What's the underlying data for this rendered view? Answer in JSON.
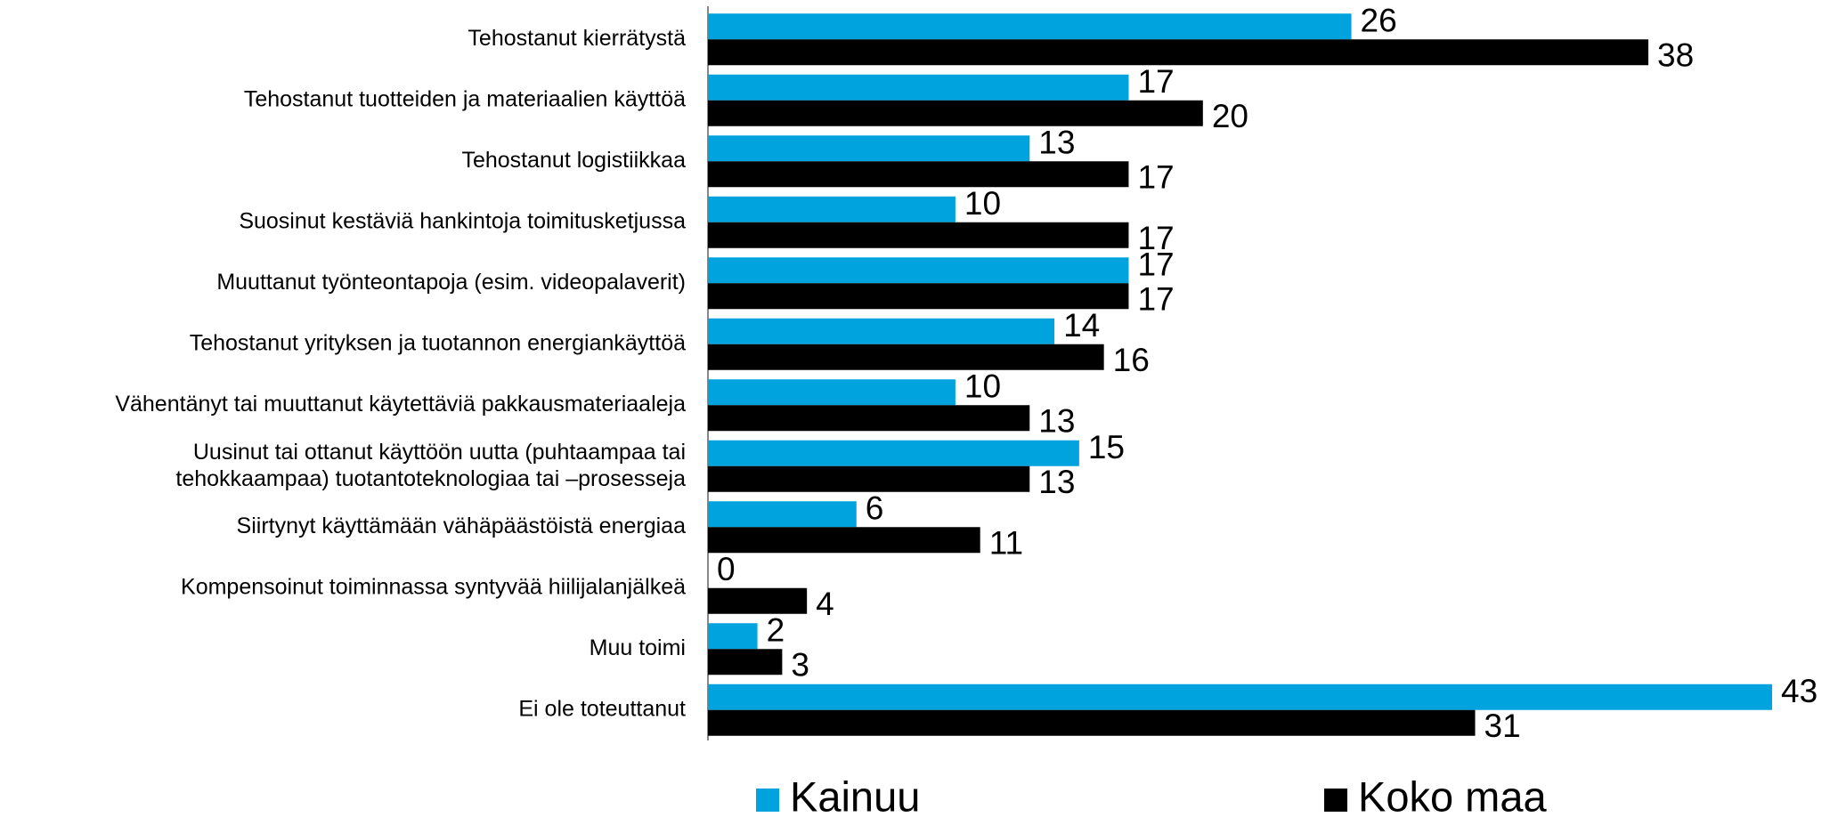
{
  "chart_data": {
    "type": "bar",
    "orientation": "horizontal",
    "categories": [
      "Tehostanut kierrätystä",
      "Tehostanut tuotteiden ja materiaalien käyttöä",
      "Tehostanut logistiikkaa",
      "Suosinut kestäviä hankintoja toimitusketjussa",
      "Muuttanut työnteontapoja (esim. videopalaverit)",
      "Tehostanut yrityksen ja tuotannon energiankäyttöä",
      "Vähentänyt tai muuttanut käytettäviä pakkausmateriaaleja",
      [
        "Uusinut tai ottanut käyttöön uutta (puhtaampaa tai",
        "tehokkaampaa) tuotantoteknologiaa tai –prosesseja"
      ],
      "Siirtynyt käyttämään vähäpäästöistä energiaa",
      "Kompensoinut toiminnassa syntyvää hiilijalanjälkeä",
      "Muu toimi",
      "Ei ole toteuttanut"
    ],
    "series": [
      {
        "name": "Kainuu",
        "color": "#00a3dd",
        "values": [
          26,
          17,
          13,
          10,
          17,
          14,
          10,
          15,
          6,
          0,
          2,
          43
        ]
      },
      {
        "name": "Koko maa",
        "color": "#000000",
        "values": [
          38,
          20,
          17,
          17,
          17,
          16,
          13,
          13,
          11,
          4,
          3,
          31
        ]
      }
    ],
    "legend": "bottom"
  }
}
